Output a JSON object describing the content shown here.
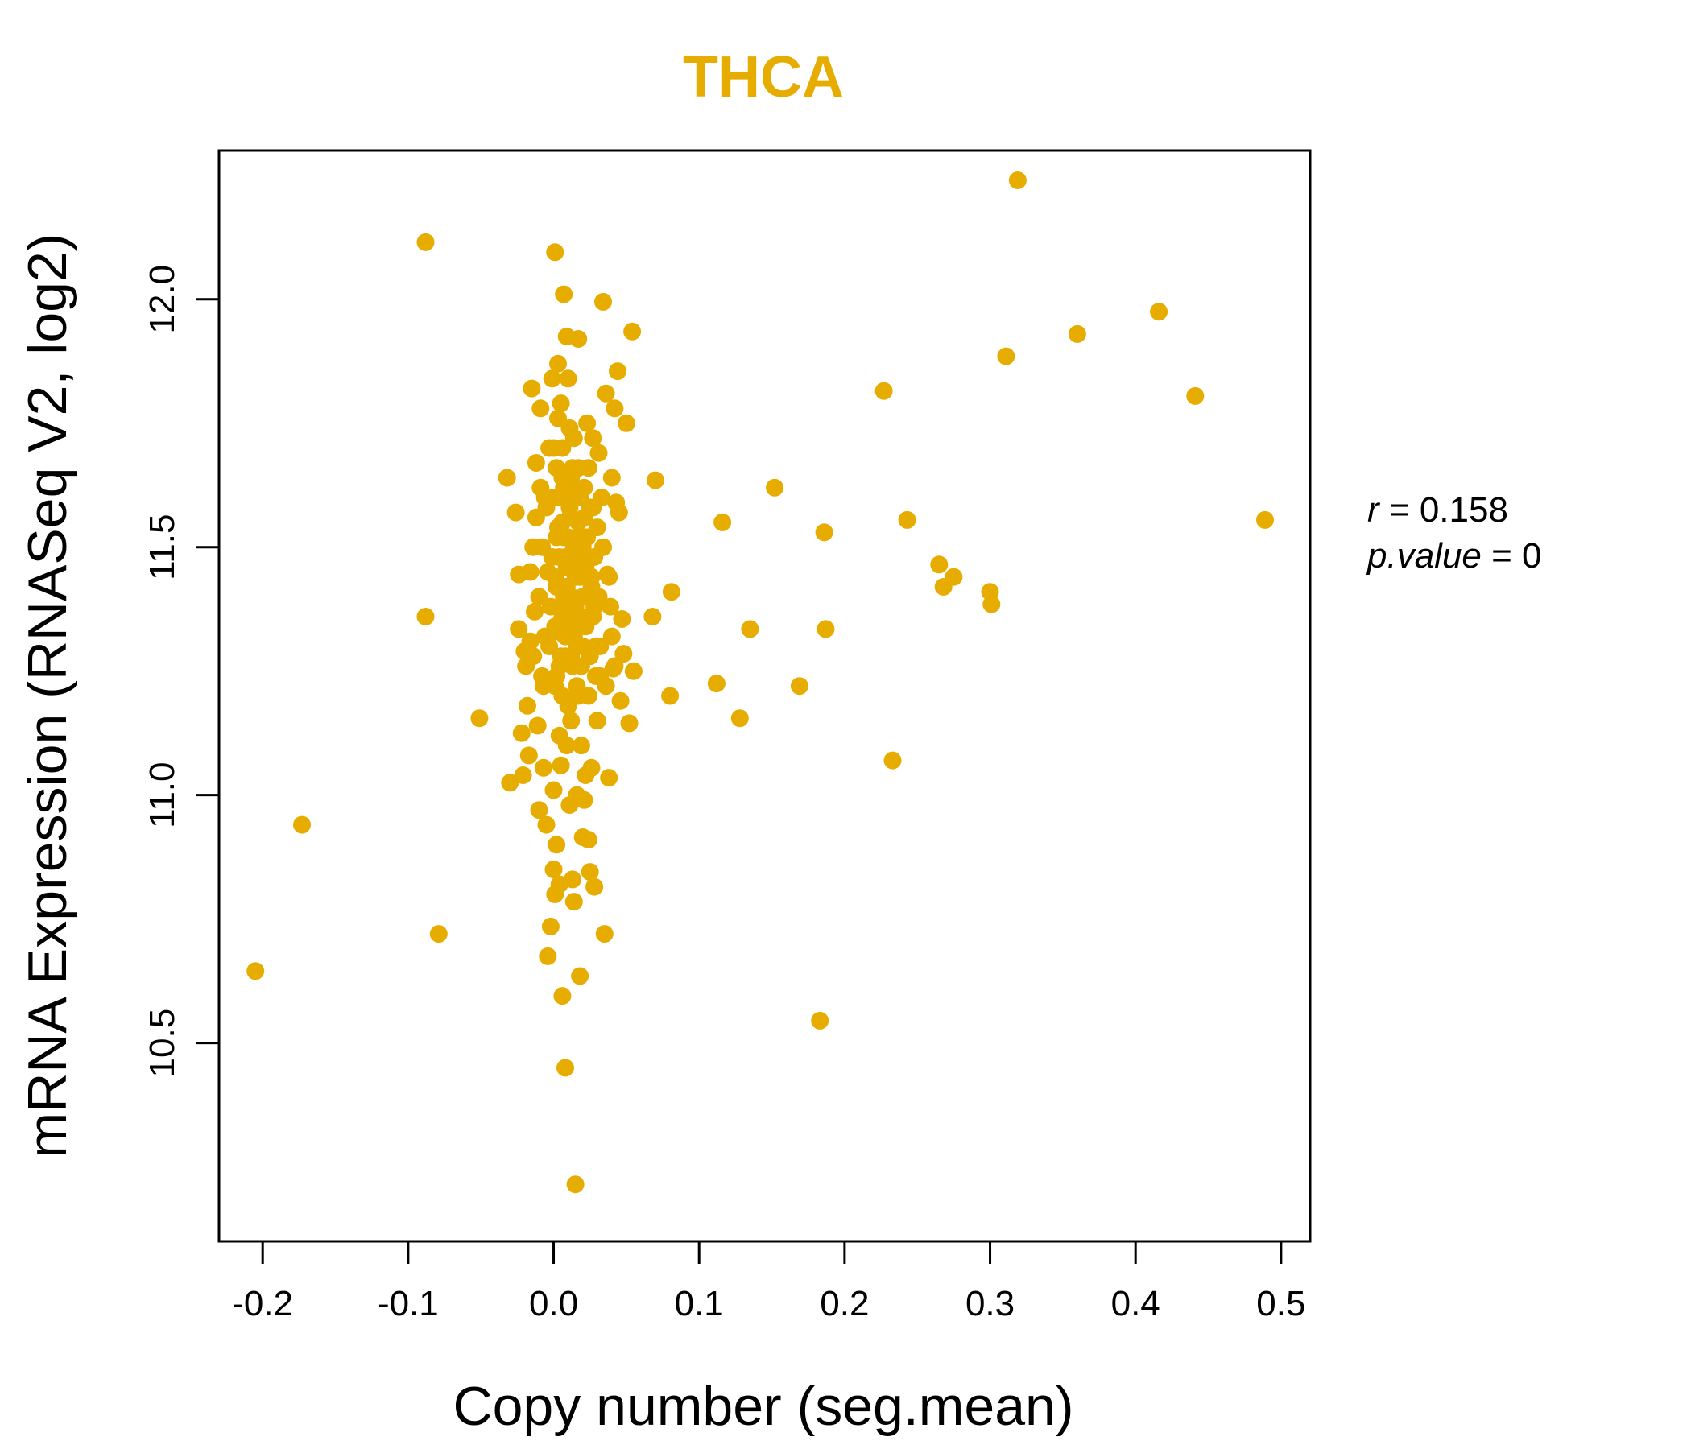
{
  "chart_data": {
    "type": "scatter",
    "title": "THCA",
    "xlabel": "Copy number (seg.mean)",
    "ylabel": "mRNA Expression (RNASeq V2, log2)",
    "xlim": [
      -0.23,
      0.52
    ],
    "ylim": [
      10.1,
      12.3
    ],
    "xticks": [
      -0.2,
      -0.1,
      0.0,
      0.1,
      0.2,
      0.3,
      0.4,
      0.5
    ],
    "xtick_labels": [
      "-0.2",
      "-0.1",
      "0.0",
      "0.1",
      "0.2",
      "0.3",
      "0.4",
      "0.5"
    ],
    "yticks": [
      10.5,
      11.0,
      11.5,
      12.0
    ],
    "ytick_labels": [
      "10.5",
      "11.0",
      "11.5",
      "12.0"
    ],
    "grid": false,
    "point_color": "#E6AD00",
    "annotation": {
      "r_label": "r",
      "r_value": "0.158",
      "p_label": "p.value",
      "p_value": "0"
    },
    "points": [
      [
        -0.205,
        10.645
      ],
      [
        -0.173,
        10.94
      ],
      [
        -0.088,
        12.115
      ],
      [
        -0.088,
        11.36
      ],
      [
        -0.079,
        10.72
      ],
      [
        -0.051,
        11.155
      ],
      [
        -0.032,
        11.64
      ],
      [
        -0.03,
        11.025
      ],
      [
        -0.026,
        11.57
      ],
      [
        -0.024,
        11.445
      ],
      [
        -0.024,
        11.335
      ],
      [
        -0.022,
        11.125
      ],
      [
        -0.021,
        11.04
      ],
      [
        -0.02,
        11.29
      ],
      [
        -0.019,
        11.26
      ],
      [
        -0.018,
        11.18
      ],
      [
        -0.017,
        11.08
      ],
      [
        -0.016,
        11.31
      ],
      [
        -0.015,
        11.82
      ],
      [
        -0.014,
        11.5
      ],
      [
        -0.013,
        11.37
      ],
      [
        -0.012,
        11.67
      ],
      [
        -0.011,
        11.14
      ],
      [
        -0.01,
        10.97
      ],
      [
        -0.009,
        11.78
      ],
      [
        -0.008,
        11.24
      ],
      [
        -0.007,
        11.055
      ],
      [
        -0.006,
        11.6
      ],
      [
        -0.005,
        10.94
      ],
      [
        -0.004,
        10.675
      ],
      [
        -0.003,
        11.7
      ],
      [
        -0.002,
        10.735
      ],
      [
        -0.001,
        11.84
      ],
      [
        0.0,
        10.85
      ],
      [
        0.0,
        11.01
      ],
      [
        0.001,
        10.8
      ],
      [
        0.001,
        12.095
      ],
      [
        0.002,
        10.9
      ],
      [
        0.003,
        11.87
      ],
      [
        0.004,
        10.82
      ],
      [
        0.005,
        11.79
      ],
      [
        0.006,
        10.595
      ],
      [
        0.007,
        12.01
      ],
      [
        0.008,
        10.45
      ],
      [
        0.009,
        11.925
      ],
      [
        0.01,
        11.84
      ],
      [
        0.011,
        10.98
      ],
      [
        0.012,
        11.15
      ],
      [
        0.013,
        10.83
      ],
      [
        0.014,
        10.785
      ],
      [
        0.015,
        10.215
      ],
      [
        0.016,
        11.0
      ],
      [
        0.017,
        11.92
      ],
      [
        0.018,
        10.635
      ],
      [
        0.019,
        11.1
      ],
      [
        0.02,
        10.915
      ],
      [
        0.021,
        10.99
      ],
      [
        0.022,
        11.04
      ],
      [
        0.023,
        11.75
      ],
      [
        0.024,
        10.91
      ],
      [
        0.025,
        10.845
      ],
      [
        0.026,
        11.055
      ],
      [
        0.027,
        11.72
      ],
      [
        0.028,
        10.815
      ],
      [
        0.029,
        11.3
      ],
      [
        0.03,
        11.15
      ],
      [
        0.031,
        11.69
      ],
      [
        0.032,
        11.24
      ],
      [
        0.033,
        11.6
      ],
      [
        0.034,
        11.995
      ],
      [
        0.035,
        10.72
      ],
      [
        0.036,
        11.81
      ],
      [
        0.037,
        11.445
      ],
      [
        0.038,
        11.035
      ],
      [
        0.039,
        11.38
      ],
      [
        0.04,
        11.64
      ],
      [
        0.041,
        11.255
      ],
      [
        0.042,
        11.78
      ],
      [
        0.043,
        11.59
      ],
      [
        0.044,
        11.855
      ],
      [
        0.045,
        11.57
      ],
      [
        0.046,
        11.19
      ],
      [
        0.047,
        11.355
      ],
      [
        0.048,
        11.285
      ],
      [
        0.05,
        11.75
      ],
      [
        0.052,
        11.145
      ],
      [
        0.054,
        11.935
      ],
      [
        0.055,
        11.25
      ],
      [
        0.068,
        11.36
      ],
      [
        0.07,
        11.635
      ],
      [
        0.08,
        11.2
      ],
      [
        0.081,
        11.41
      ],
      [
        0.112,
        11.225
      ],
      [
        0.116,
        11.55
      ],
      [
        0.128,
        11.155
      ],
      [
        0.135,
        11.335
      ],
      [
        0.152,
        11.62
      ],
      [
        0.169,
        11.22
      ],
      [
        0.183,
        10.545
      ],
      [
        0.186,
        11.53
      ],
      [
        0.187,
        11.335
      ],
      [
        0.227,
        11.815
      ],
      [
        0.233,
        11.07
      ],
      [
        0.243,
        11.555
      ],
      [
        0.265,
        11.465
      ],
      [
        0.268,
        11.42
      ],
      [
        0.275,
        11.44
      ],
      [
        0.3,
        11.41
      ],
      [
        0.301,
        11.385
      ],
      [
        0.311,
        11.885
      ],
      [
        0.319,
        12.24
      ],
      [
        0.36,
        11.93
      ],
      [
        0.416,
        11.975
      ],
      [
        0.441,
        11.805
      ],
      [
        0.489,
        11.555
      ],
      [
        0.002,
        11.52
      ],
      [
        0.004,
        11.48
      ],
      [
        0.006,
        11.55
      ],
      [
        0.008,
        11.42
      ],
      [
        0.01,
        11.62
      ],
      [
        0.003,
        11.33
      ],
      [
        0.005,
        11.28
      ],
      [
        0.007,
        11.4
      ],
      [
        0.009,
        11.46
      ],
      [
        0.011,
        11.58
      ],
      [
        0.001,
        11.22
      ],
      [
        0.012,
        11.35
      ],
      [
        0.013,
        11.66
      ],
      [
        0.014,
        11.5
      ],
      [
        0.015,
        11.44
      ],
      [
        -0.002,
        11.38
      ],
      [
        0.016,
        11.3
      ],
      [
        0.017,
        11.55
      ],
      [
        0.018,
        11.48
      ],
      [
        0.019,
        11.26
      ],
      [
        0.0,
        11.6
      ],
      [
        0.02,
        11.4
      ],
      [
        0.021,
        11.62
      ],
      [
        0.022,
        11.34
      ],
      [
        0.023,
        11.52
      ],
      [
        -0.004,
        11.45
      ],
      [
        0.024,
        11.2
      ],
      [
        0.025,
        11.58
      ],
      [
        0.026,
        11.42
      ],
      [
        0.027,
        11.36
      ],
      [
        -0.006,
        11.32
      ],
      [
        0.028,
        11.48
      ],
      [
        0.029,
        11.24
      ],
      [
        0.03,
        11.54
      ],
      [
        0.031,
        11.4
      ],
      [
        -0.008,
        11.5
      ],
      [
        0.006,
        11.7
      ],
      [
        0.008,
        11.28
      ],
      [
        0.01,
        11.18
      ],
      [
        0.012,
        11.64
      ],
      [
        -0.01,
        11.4
      ],
      [
        0.004,
        11.12
      ],
      [
        0.014,
        11.72
      ],
      [
        0.016,
        11.22
      ],
      [
        0.018,
        11.6
      ],
      [
        -0.012,
        11.56
      ],
      [
        0.002,
        11.66
      ],
      [
        0.02,
        11.3
      ],
      [
        0.022,
        11.46
      ],
      [
        0.024,
        11.66
      ],
      [
        -0.014,
        11.28
      ],
      [
        0.003,
        11.76
      ],
      [
        0.005,
        11.06
      ],
      [
        0.007,
        11.62
      ],
      [
        0.009,
        11.1
      ],
      [
        -0.016,
        11.45
      ],
      [
        0.011,
        11.74
      ],
      [
        0.013,
        11.26
      ],
      [
        0.015,
        11.38
      ],
      [
        0.017,
        11.66
      ],
      [
        -0.003,
        11.3
      ],
      [
        0.001,
        11.44
      ],
      [
        0.006,
        11.36
      ],
      [
        0.01,
        11.52
      ],
      [
        0.012,
        11.4
      ],
      [
        -0.005,
        11.58
      ],
      [
        0.004,
        11.26
      ],
      [
        0.008,
        11.48
      ],
      [
        0.014,
        11.32
      ],
      [
        0.018,
        11.44
      ],
      [
        0.0,
        11.7
      ],
      [
        0.002,
        11.24
      ],
      [
        0.006,
        11.64
      ],
      [
        0.01,
        11.34
      ],
      [
        0.02,
        11.5
      ],
      [
        -0.007,
        11.22
      ],
      [
        0.003,
        11.54
      ],
      [
        0.009,
        11.42
      ],
      [
        0.015,
        11.6
      ],
      [
        0.025,
        11.28
      ],
      [
        -0.009,
        11.62
      ],
      [
        0.005,
        11.38
      ],
      [
        0.011,
        11.56
      ],
      [
        0.017,
        11.2
      ],
      [
        0.026,
        11.44
      ],
      [
        0.001,
        11.34
      ],
      [
        0.007,
        11.52
      ],
      [
        0.013,
        11.46
      ],
      [
        0.019,
        11.36
      ],
      [
        0.027,
        11.58
      ],
      [
        -0.001,
        11.48
      ],
      [
        0.004,
        11.6
      ],
      [
        0.008,
        11.32
      ],
      [
        0.016,
        11.52
      ],
      [
        0.028,
        11.38
      ],
      [
        0.002,
        11.42
      ],
      [
        0.006,
        11.2
      ],
      [
        0.012,
        11.28
      ],
      [
        0.021,
        11.56
      ],
      [
        0.032,
        11.3
      ],
      [
        0.034,
        11.5
      ],
      [
        0.036,
        11.22
      ],
      [
        0.038,
        11.44
      ],
      [
        0.04,
        11.32
      ],
      [
        0.042,
        11.26
      ]
    ]
  }
}
